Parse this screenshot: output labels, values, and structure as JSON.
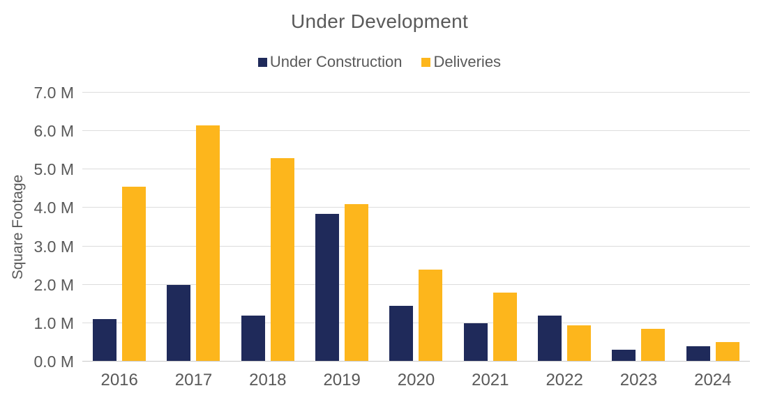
{
  "chart_data": {
    "type": "bar",
    "title": "Under Development",
    "xlabel": "",
    "ylabel": "Square Footage",
    "categories": [
      "2016",
      "2017",
      "2018",
      "2019",
      "2020",
      "2021",
      "2022",
      "2023",
      "2024"
    ],
    "series": [
      {
        "name": "Under Construction",
        "color": "#1F2A5A",
        "values": [
          1.1,
          2.0,
          1.2,
          3.85,
          1.45,
          1.0,
          1.2,
          0.3,
          0.4
        ]
      },
      {
        "name": "Deliveries",
        "color": "#FDB61C",
        "values": [
          4.55,
          6.15,
          5.3,
          4.1,
          2.4,
          1.8,
          0.95,
          0.85,
          0.5
        ]
      }
    ],
    "ylim": [
      0,
      7
    ],
    "y_ticks": [
      {
        "value": 0,
        "label": "0.0 M"
      },
      {
        "value": 1,
        "label": "1.0 M"
      },
      {
        "value": 2,
        "label": "2.0 M"
      },
      {
        "value": 3,
        "label": "3.0 M"
      },
      {
        "value": 4,
        "label": "4.0 M"
      },
      {
        "value": 5,
        "label": "5.0 M"
      },
      {
        "value": 6,
        "label": "6.0 M"
      },
      {
        "value": 7,
        "label": "7.0 M"
      }
    ],
    "grid": true,
    "legend_position": "top",
    "gridline_color": "#dcdcdc",
    "text_color": "#595959",
    "background_color": "#ffffff"
  }
}
